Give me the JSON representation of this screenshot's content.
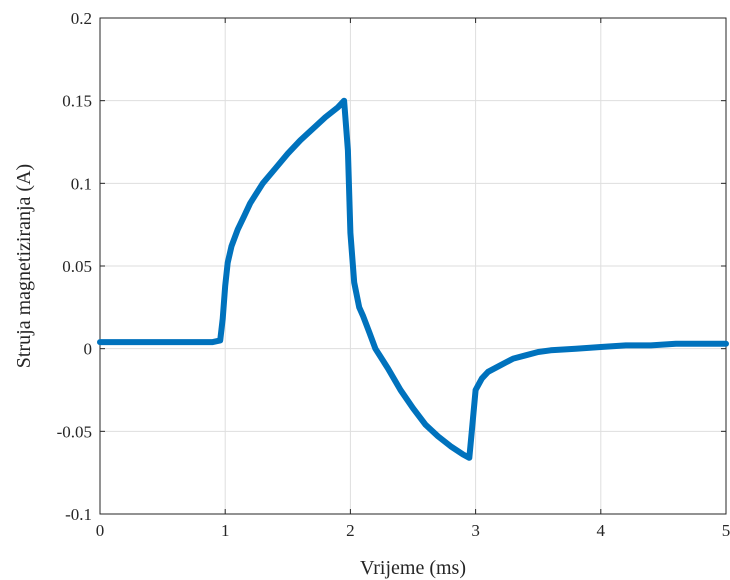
{
  "chart_data": {
    "type": "line",
    "title": "",
    "xlabel": "Vrijeme (ms)",
    "ylabel": "Struja magnetiziranja (A)",
    "xlim": [
      0,
      5
    ],
    "ylim": [
      -0.1,
      0.2
    ],
    "x_ticks": [
      0,
      1,
      2,
      3,
      4,
      5
    ],
    "y_ticks": [
      -0.1,
      -0.05,
      0,
      0.05,
      0.1,
      0.15,
      0.2
    ],
    "x_tick_labels": [
      "0",
      "1",
      "2",
      "3",
      "4",
      "5"
    ],
    "y_tick_labels": [
      "-0.1",
      "-0.05",
      "0",
      "0.05",
      "0.1",
      "0.15",
      "0.2"
    ],
    "grid": true,
    "legend": "none",
    "series": [
      {
        "color": "#0072bd",
        "x": [
          0,
          0.1,
          0.2,
          0.3,
          0.4,
          0.5,
          0.6,
          0.7,
          0.8,
          0.9,
          0.96,
          0.98,
          1.0,
          1.02,
          1.05,
          1.1,
          1.15,
          1.2,
          1.3,
          1.4,
          1.5,
          1.6,
          1.7,
          1.8,
          1.9,
          1.95,
          1.98,
          2.0,
          2.03,
          2.07,
          2.1,
          2.15,
          2.2,
          2.3,
          2.4,
          2.5,
          2.6,
          2.7,
          2.8,
          2.9,
          2.95,
          2.97,
          3.0,
          3.05,
          3.1,
          3.2,
          3.3,
          3.4,
          3.5,
          3.6,
          3.8,
          4.0,
          4.2,
          4.4,
          4.6,
          4.8,
          5.0
        ],
        "y": [
          0.004,
          0.004,
          0.004,
          0.004,
          0.004,
          0.004,
          0.004,
          0.004,
          0.004,
          0.004,
          0.005,
          0.018,
          0.038,
          0.052,
          0.062,
          0.072,
          0.08,
          0.088,
          0.1,
          0.109,
          0.118,
          0.126,
          0.133,
          0.14,
          0.146,
          0.15,
          0.12,
          0.07,
          0.04,
          0.025,
          0.02,
          0.01,
          0.0,
          -0.012,
          -0.025,
          -0.036,
          -0.046,
          -0.053,
          -0.059,
          -0.064,
          -0.066,
          -0.05,
          -0.025,
          -0.018,
          -0.014,
          -0.01,
          -0.006,
          -0.004,
          -0.002,
          -0.001,
          0.0,
          0.001,
          0.002,
          0.002,
          0.003,
          0.003,
          0.003
        ]
      }
    ]
  }
}
